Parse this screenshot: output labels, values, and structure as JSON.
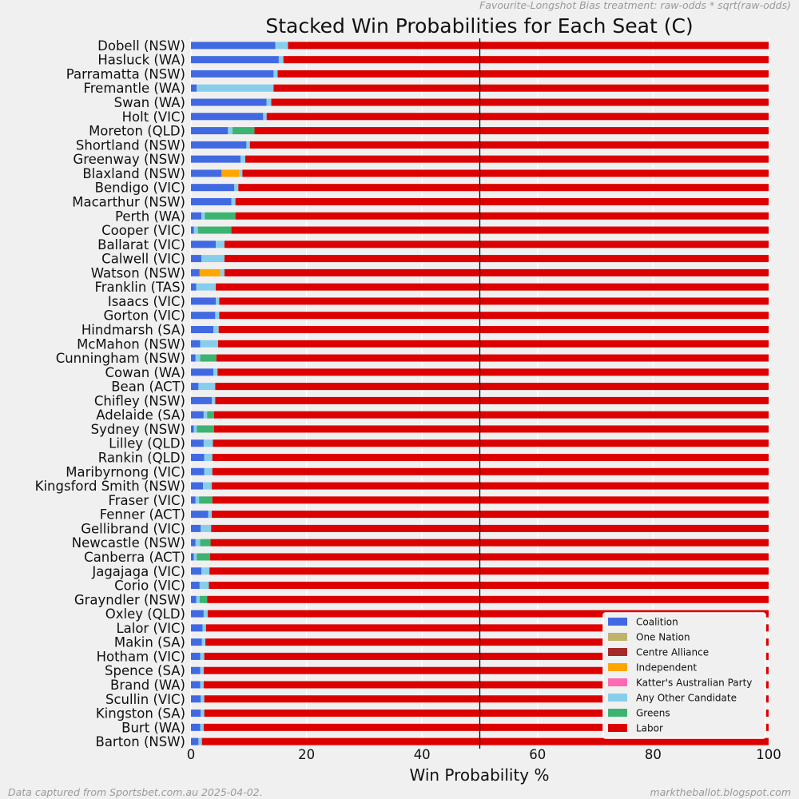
{
  "header_note": "Favourite-Longshot Bias treatment: raw-odds * sqrt(raw-odds)",
  "footer_left": "Data captured from Sportsbet.com.au 2025-04-02.",
  "footer_right": "marktheballot.blogspot.com",
  "colors": {
    "background": "#f0f0f0",
    "grid": "#ffffff",
    "reference_line": "#000000"
  },
  "chart_data": {
    "type": "bar",
    "orientation": "horizontal",
    "stacked": true,
    "title": "Stacked Win Probabilities for Each Seat (C)",
    "xlabel": "Win Probability %",
    "ylabel": "",
    "xlim": [
      0,
      100
    ],
    "xticks": [
      "0",
      "20",
      "40",
      "60",
      "80",
      "100"
    ],
    "reference_line_x": 50,
    "grid": true,
    "legend_position": "bottom-right",
    "categories": [
      "Dobell (NSW)",
      "Hasluck (WA)",
      "Parramatta (NSW)",
      "Fremantle (WA)",
      "Swan (WA)",
      "Holt (VIC)",
      "Moreton (QLD)",
      "Shortland (NSW)",
      "Greenway (NSW)",
      "Blaxland (NSW)",
      "Bendigo (VIC)",
      "Macarthur (NSW)",
      "Perth (WA)",
      "Cooper (VIC)",
      "Ballarat (VIC)",
      "Calwell (VIC)",
      "Watson (NSW)",
      "Franklin (TAS)",
      "Isaacs (VIC)",
      "Gorton (VIC)",
      "Hindmarsh (SA)",
      "McMahon (NSW)",
      "Cunningham (NSW)",
      "Cowan (WA)",
      "Bean (ACT)",
      "Chifley (NSW)",
      "Adelaide (SA)",
      "Sydney (NSW)",
      "Lilley (QLD)",
      "Rankin (QLD)",
      "Maribyrnong (VIC)",
      "Kingsford Smith (NSW)",
      "Fraser (VIC)",
      "Fenner (ACT)",
      "Gellibrand (VIC)",
      "Newcastle (NSW)",
      "Canberra (ACT)",
      "Jagajaga (VIC)",
      "Corio (VIC)",
      "Grayndler (NSW)",
      "Oxley (QLD)",
      "Lalor (VIC)",
      "Makin (SA)",
      "Hotham (VIC)",
      "Spence (SA)",
      "Brand (WA)",
      "Scullin (VIC)",
      "Kingston (SA)",
      "Burt (WA)",
      "Barton (NSW)"
    ],
    "series": [
      {
        "name": "Coalition",
        "color": "#4169e1",
        "values": [
          14.6,
          15.2,
          14.3,
          1.0,
          13.1,
          12.5,
          6.4,
          9.6,
          8.6,
          5.3,
          7.5,
          7.0,
          1.8,
          0.5,
          4.3,
          1.8,
          1.5,
          0.9,
          4.3,
          4.2,
          3.9,
          1.6,
          0.8,
          3.9,
          1.3,
          3.6,
          2.2,
          0.5,
          2.2,
          2.3,
          2.3,
          2.1,
          0.8,
          3.0,
          1.7,
          0.8,
          0.5,
          1.8,
          1.5,
          0.9,
          2.2,
          2.0,
          1.9,
          1.6,
          1.6,
          1.6,
          1.7,
          1.7,
          1.6,
          1.3
        ]
      },
      {
        "name": "One Nation",
        "color": "#bdb36b",
        "values": [
          0,
          0,
          0,
          0,
          0,
          0,
          0,
          0,
          0,
          0,
          0,
          0,
          0,
          0,
          0,
          0,
          0,
          0,
          0,
          0,
          0,
          0,
          0,
          0,
          0,
          0,
          0,
          0,
          0,
          0,
          0,
          0,
          0,
          0,
          0,
          0,
          0,
          0,
          0,
          0,
          0,
          0,
          0,
          0,
          0,
          0,
          0,
          0,
          0,
          0
        ]
      },
      {
        "name": "Centre Alliance",
        "color": "#a52a2a",
        "values": [
          0,
          0,
          0,
          0,
          0,
          0,
          0,
          0,
          0,
          0,
          0,
          0,
          0,
          0,
          0,
          0,
          0,
          0,
          0,
          0,
          0,
          0,
          0,
          0,
          0,
          0,
          0,
          0,
          0,
          0,
          0,
          0,
          0,
          0,
          0,
          0,
          0,
          0,
          0,
          0,
          0,
          0,
          0,
          0,
          0,
          0,
          0,
          0,
          0,
          0
        ]
      },
      {
        "name": "Independent",
        "color": "#ffa500",
        "values": [
          0,
          0,
          0,
          0,
          0,
          0,
          0,
          0,
          0,
          3.0,
          0,
          0,
          0,
          0,
          0,
          0,
          3.6,
          0,
          0,
          0,
          0,
          0,
          0,
          0,
          0,
          0,
          0,
          0,
          0,
          0,
          0,
          0,
          0,
          0,
          0,
          0,
          0,
          0,
          0,
          0,
          0,
          0,
          0,
          0,
          0,
          0,
          0,
          0,
          0,
          0
        ]
      },
      {
        "name": "Katter's Australian Party",
        "color": "#ff69b4",
        "values": [
          0,
          0,
          0,
          0,
          0,
          0,
          0,
          0,
          0,
          0,
          0,
          0,
          0,
          0,
          0,
          0,
          0,
          0,
          0,
          0,
          0,
          0,
          0,
          0,
          0,
          0,
          0,
          0,
          0,
          0,
          0,
          0,
          0,
          0,
          0,
          0,
          0,
          0,
          0,
          0,
          0,
          0,
          0,
          0,
          0,
          0,
          0,
          0,
          0,
          0
        ]
      },
      {
        "name": "Any Other Candidate",
        "color": "#87ceeb",
        "values": [
          2.2,
          0.8,
          0.7,
          13.3,
          0.8,
          0.6,
          0.8,
          0.6,
          0.8,
          0.6,
          0.7,
          0.7,
          0.6,
          0.7,
          1.5,
          4.0,
          0.7,
          3.4,
          0.6,
          0.7,
          0.9,
          3.1,
          0.8,
          0.7,
          2.9,
          0.6,
          0.6,
          0.5,
          1.6,
          1.4,
          1.4,
          1.5,
          0.6,
          0.6,
          1.8,
          0.8,
          0.5,
          1.4,
          1.6,
          0.6,
          0.7,
          0.6,
          0.6,
          0.7,
          0.6,
          0.6,
          0.6,
          0.6,
          0.6,
          0.6
        ]
      },
      {
        "name": "Greens",
        "color": "#3cb371",
        "values": [
          0,
          0,
          0,
          0,
          0,
          0,
          3.8,
          0,
          0,
          0,
          0,
          0,
          5.3,
          5.8,
          0,
          0,
          0,
          0,
          0,
          0,
          0,
          0,
          2.8,
          0,
          0,
          0,
          1.2,
          3.0,
          0,
          0,
          0,
          0,
          2.3,
          0,
          0,
          1.8,
          2.3,
          0,
          0,
          1.3,
          0,
          0,
          0,
          0,
          0,
          0,
          0,
          0,
          0,
          0
        ]
      },
      {
        "name": "Labor",
        "color": "#dd0000",
        "values": [
          83.2,
          84.0,
          85.0,
          85.7,
          86.1,
          86.9,
          89.0,
          89.8,
          90.6,
          91.1,
          91.8,
          92.3,
          92.3,
          93.0,
          94.2,
          94.2,
          94.2,
          95.7,
          95.1,
          95.1,
          95.2,
          95.3,
          95.6,
          95.4,
          95.8,
          95.8,
          96.0,
          96.0,
          96.2,
          96.3,
          96.3,
          96.4,
          96.3,
          96.4,
          96.5,
          96.6,
          96.7,
          96.8,
          96.9,
          97.2,
          97.1,
          97.4,
          97.5,
          97.7,
          97.8,
          97.8,
          97.7,
          97.7,
          97.8,
          98.1
        ]
      }
    ]
  }
}
